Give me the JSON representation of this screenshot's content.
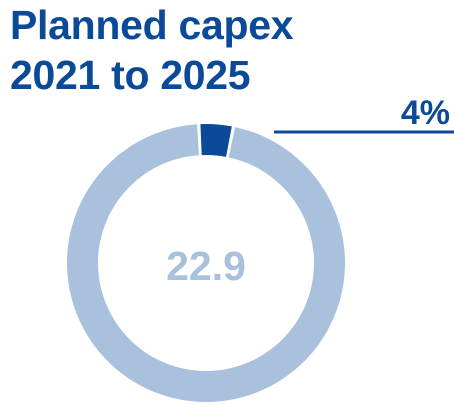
{
  "chart_data": {
    "type": "pie",
    "title_lines": [
      "Planned capex",
      "2021 to 2025"
    ],
    "total_label": "22.9",
    "slices": [
      {
        "label": "4%",
        "percent": 4,
        "color": "#0a4a99"
      },
      {
        "label": "",
        "percent": 96,
        "color": "#a9c1dc"
      }
    ],
    "center_label_color": "#a9c1dc",
    "callout_color": "#0a4a99"
  }
}
